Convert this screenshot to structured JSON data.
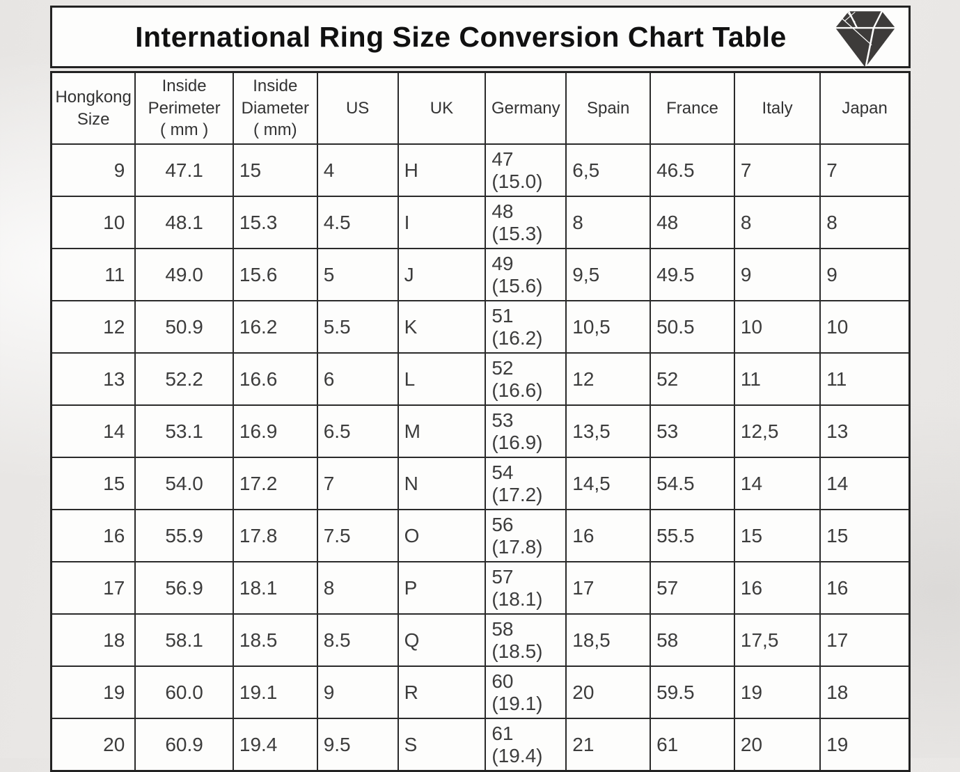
{
  "page": {
    "title": "International Ring Size Conversion Chart Table"
  },
  "icons": {
    "logo": "diamond-icon"
  },
  "colors": {
    "paper": "#fdfdfc",
    "border": "#2a2a2a",
    "title_text": "#111111",
    "cell_text": "#3c3c3c",
    "background": "#e8e6e4",
    "diamond": "#3d3b3a"
  },
  "chart_data": {
    "type": "table",
    "title": "International Ring Size Conversion Chart Table",
    "columns": [
      "Hongkong\nSize",
      "Inside\nPerimeter\n( mm )",
      "Inside\nDiameter\n( mm)",
      "US",
      "UK",
      "Germany",
      "Spain",
      "France",
      "Italy",
      "Japan"
    ],
    "rows": [
      [
        "9",
        "47.1",
        "15",
        "4",
        "H",
        "47 (15.0)",
        "6,5",
        "46.5",
        "7",
        "7"
      ],
      [
        "10",
        "48.1",
        "15.3",
        "4.5",
        "I",
        "48 (15.3)",
        "8",
        "48",
        "8",
        "8"
      ],
      [
        "11",
        "49.0",
        "15.6",
        "5",
        "J",
        "49 (15.6)",
        "9,5",
        "49.5",
        "9",
        "9"
      ],
      [
        "12",
        "50.9",
        "16.2",
        "5.5",
        "K",
        "51 (16.2)",
        "10,5",
        "50.5",
        "10",
        "10"
      ],
      [
        "13",
        "52.2",
        "16.6",
        "6",
        "L",
        "52 (16.6)",
        "12",
        "52",
        "11",
        "11"
      ],
      [
        "14",
        "53.1",
        "16.9",
        "6.5",
        "M",
        "53 (16.9)",
        "13,5",
        "53",
        "12,5",
        "13"
      ],
      [
        "15",
        "54.0",
        "17.2",
        "7",
        "N",
        "54 (17.2)",
        "14,5",
        "54.5",
        "14",
        "14"
      ],
      [
        "16",
        "55.9",
        "17.8",
        "7.5",
        "O",
        "56 (17.8)",
        "16",
        "55.5",
        "15",
        "15"
      ],
      [
        "17",
        "56.9",
        "18.1",
        "8",
        "P",
        "57 (18.1)",
        "17",
        "57",
        "16",
        "16"
      ],
      [
        "18",
        "58.1",
        "18.5",
        "8.5",
        "Q",
        "58 (18.5)",
        "18,5",
        "58",
        "17,5",
        "17"
      ],
      [
        "19",
        "60.0",
        "19.1",
        "9",
        "R",
        "60 (19.1)",
        "20",
        "59.5",
        "19",
        "18"
      ],
      [
        "20",
        "60.9",
        "19.4",
        "9.5",
        "S",
        "61 (19.4)",
        "21",
        "61",
        "20",
        "19"
      ]
    ]
  }
}
